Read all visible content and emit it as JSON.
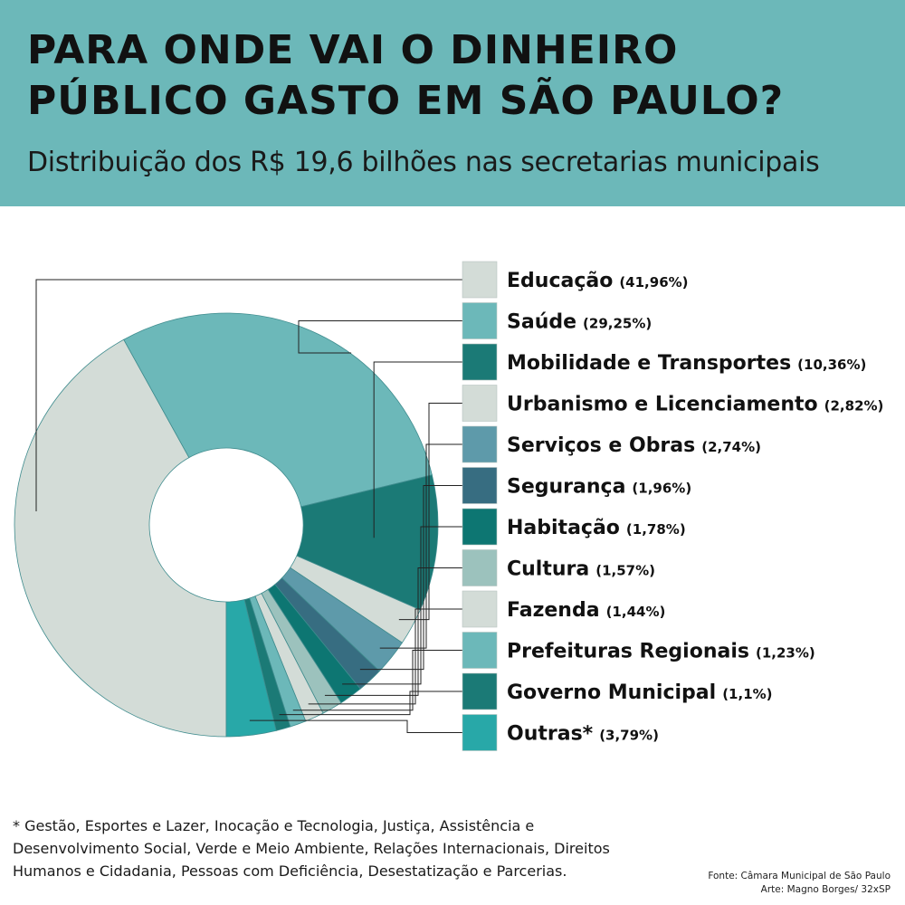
{
  "header": {
    "title_line1": "PARA ONDE VAI O DINHEIRO",
    "title_line2": "PÚBLICO GASTO EM SÃO PAULO?",
    "subtitle": "Distribuição dos R$ 19,6 bilhões nas secretarias municipais"
  },
  "chart_data": {
    "type": "pie",
    "title": "PARA ONDE VAI O DINHEIRO PÚBLICO GASTO EM SÃO PAULO?",
    "subtitle": "Distribuição dos R$ 19,6 bilhões nas secretarias municipais",
    "donut": true,
    "legend_position": "right",
    "slices": [
      {
        "label": "Educação",
        "value": 41.96,
        "pct_label": "(41,96%)",
        "color": "#d3dcd7"
      },
      {
        "label": "Saúde",
        "value": 29.25,
        "pct_label": "(29,25%)",
        "color": "#6cb8b9"
      },
      {
        "label": "Mobilidade e Transportes",
        "value": 10.36,
        "pct_label": "(10,36%)",
        "color": "#1b7a76"
      },
      {
        "label": "Urbanismo e Licenciamento",
        "value": 2.82,
        "pct_label": "(2,82%)",
        "color": "#d3dcd7"
      },
      {
        "label": "Serviços e Obras",
        "value": 2.74,
        "pct_label": "(2,74%)",
        "color": "#5e9aaa"
      },
      {
        "label": "Segurança",
        "value": 1.96,
        "pct_label": "(1,96%)",
        "color": "#376d81"
      },
      {
        "label": "Habitação",
        "value": 1.78,
        "pct_label": "(1,78%)",
        "color": "#0d7672"
      },
      {
        "label": "Cultura",
        "value": 1.57,
        "pct_label": "(1,57%)",
        "color": "#9cc2bd"
      },
      {
        "label": "Fazenda",
        "value": 1.44,
        "pct_label": "(1,44%)",
        "color": "#d3dcd7"
      },
      {
        "label": "Prefeituras Regionais",
        "value": 1.23,
        "pct_label": "(1,23%)",
        "color": "#6cb8b9"
      },
      {
        "label": "Governo Municipal",
        "value": 1.1,
        "pct_label": "(1,1%)",
        "color": "#1b7a76"
      },
      {
        "label": "Outras*",
        "value": 3.79,
        "pct_label": "(3,79%)",
        "color": "#28a8a8"
      }
    ],
    "footnote": "* Gestão, Esportes e Lazer, Inocação e Tecnologia, Justiça, Assistência e Desenvolvimento Social, Verde e Meio Ambiente, Relações Internacionais, Direitos Humanos e Cidadania, Pessoas com Deficiência, Desestatização e Parcerias."
  },
  "credits": {
    "source": "Fonte: Câmara Municipal de São Paulo",
    "art": "Arte: Magno Borges/ 32xSP"
  }
}
